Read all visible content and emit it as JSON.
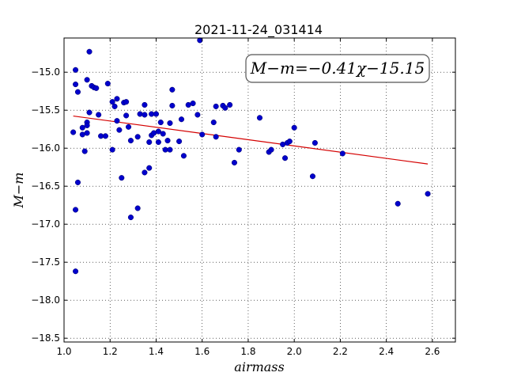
{
  "chart_data": {
    "type": "scatter",
    "title": "2021-11-24_031414",
    "xlabel": "airmass",
    "ylabel": "M−m",
    "xlim": [
      1.0,
      2.7
    ],
    "ylim": [
      -18.55,
      -14.55
    ],
    "x_ticks": [
      "1.0",
      "1.2",
      "1.4",
      "1.6",
      "1.8",
      "2.0",
      "2.2",
      "2.4",
      "2.6"
    ],
    "y_ticks": [
      "−15.0",
      "−15.5",
      "−16.0",
      "−16.5",
      "−17.0",
      "−17.5",
      "−18.0",
      "−18.5"
    ],
    "grid": true,
    "annotation": "M−m=−0.41χ−15.15",
    "fit_line": {
      "slope": -0.41,
      "intercept": -15.15,
      "x_range": [
        1.04,
        2.58
      ],
      "color": "#d40000"
    },
    "marker_color": "#0000cc",
    "points": [
      [
        1.04,
        -15.79
      ],
      [
        1.05,
        -15.16
      ],
      [
        1.05,
        -14.97
      ],
      [
        1.05,
        -16.81
      ],
      [
        1.05,
        -17.62
      ],
      [
        1.06,
        -15.26
      ],
      [
        1.06,
        -16.45
      ],
      [
        1.08,
        -15.82
      ],
      [
        1.08,
        -15.73
      ],
      [
        1.09,
        -16.04
      ],
      [
        1.1,
        -15.8
      ],
      [
        1.1,
        -15.66
      ],
      [
        1.1,
        -15.7
      ],
      [
        1.1,
        -15.1
      ],
      [
        1.11,
        -15.53
      ],
      [
        1.11,
        -14.73
      ],
      [
        1.12,
        -15.18
      ],
      [
        1.13,
        -15.2
      ],
      [
        1.14,
        -15.21
      ],
      [
        1.15,
        -15.56
      ],
      [
        1.16,
        -15.84
      ],
      [
        1.18,
        -15.84
      ],
      [
        1.19,
        -15.15
      ],
      [
        1.21,
        -15.39
      ],
      [
        1.21,
        -16.02
      ],
      [
        1.22,
        -15.45
      ],
      [
        1.23,
        -15.64
      ],
      [
        1.23,
        -15.35
      ],
      [
        1.24,
        -15.76
      ],
      [
        1.25,
        -16.39
      ],
      [
        1.26,
        -15.4
      ],
      [
        1.27,
        -15.57
      ],
      [
        1.27,
        -15.39
      ],
      [
        1.28,
        -15.72
      ],
      [
        1.29,
        -15.9
      ],
      [
        1.29,
        -16.91
      ],
      [
        1.32,
        -15.85
      ],
      [
        1.32,
        -16.79
      ],
      [
        1.33,
        -15.55
      ],
      [
        1.35,
        -15.56
      ],
      [
        1.35,
        -15.43
      ],
      [
        1.35,
        -16.32
      ],
      [
        1.37,
        -15.92
      ],
      [
        1.37,
        -16.26
      ],
      [
        1.38,
        -15.55
      ],
      [
        1.38,
        -15.83
      ],
      [
        1.39,
        -15.8
      ],
      [
        1.4,
        -15.55
      ],
      [
        1.41,
        -15.78
      ],
      [
        1.41,
        -15.92
      ],
      [
        1.42,
        -15.66
      ],
      [
        1.43,
        -15.81
      ],
      [
        1.44,
        -16.02
      ],
      [
        1.45,
        -15.9
      ],
      [
        1.46,
        -16.02
      ],
      [
        1.46,
        -15.67
      ],
      [
        1.47,
        -15.44
      ],
      [
        1.47,
        -15.23
      ],
      [
        1.5,
        -15.91
      ],
      [
        1.51,
        -15.62
      ],
      [
        1.52,
        -16.1
      ],
      [
        1.54,
        -15.43
      ],
      [
        1.56,
        -15.41
      ],
      [
        1.58,
        -15.56
      ],
      [
        1.59,
        -14.58
      ],
      [
        1.6,
        -15.82
      ],
      [
        1.65,
        -15.66
      ],
      [
        1.66,
        -15.45
      ],
      [
        1.66,
        -15.85
      ],
      [
        1.69,
        -15.44
      ],
      [
        1.7,
        -15.47
      ],
      [
        1.72,
        -15.43
      ],
      [
        1.74,
        -16.19
      ],
      [
        1.76,
        -16.02
      ],
      [
        1.85,
        -15.6
      ],
      [
        1.89,
        -16.05
      ],
      [
        1.9,
        -16.02
      ],
      [
        1.95,
        -15.95
      ],
      [
        1.96,
        -16.13
      ],
      [
        1.97,
        -15.93
      ],
      [
        1.98,
        -15.91
      ],
      [
        2.0,
        -15.73
      ],
      [
        2.08,
        -16.37
      ],
      [
        2.09,
        -15.93
      ],
      [
        2.21,
        -16.07
      ],
      [
        2.45,
        -16.73
      ],
      [
        2.58,
        -16.6
      ]
    ]
  }
}
